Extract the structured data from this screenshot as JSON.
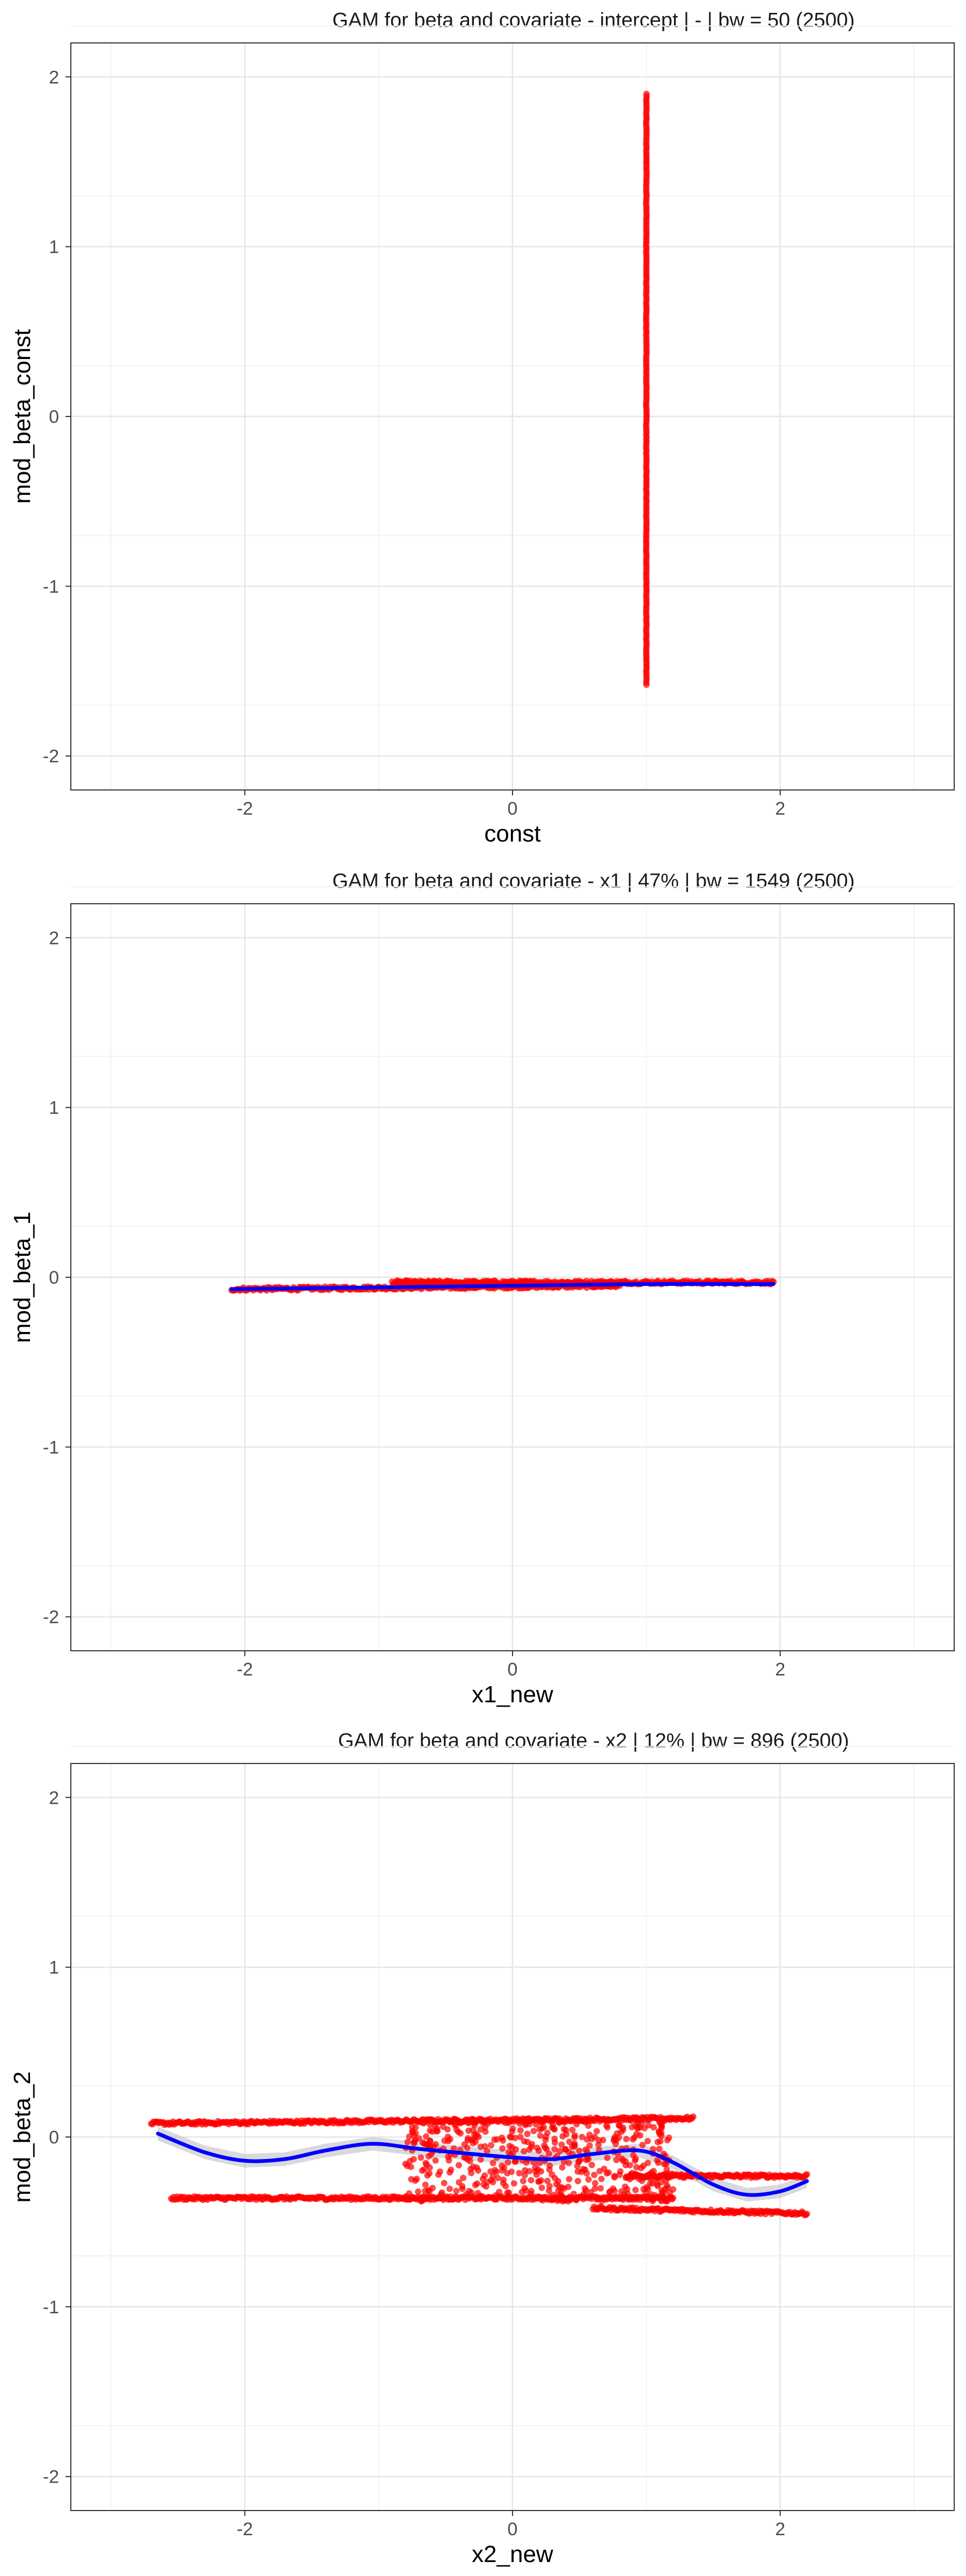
{
  "colors": {
    "points": "#ff0000",
    "smooth": "#0000ff",
    "ribbon": "#bfbfc6",
    "grid_major": "#e6e6e6",
    "grid_minor": "#f2f2f2",
    "panel_border": "#333333"
  },
  "chart_data": [
    {
      "type": "scatter",
      "title": "GAM for beta and covariate - intercept | - | bw = 50 (2500)",
      "xlabel": "const",
      "ylabel": "mod_beta_const",
      "xlim": [
        -3.3,
        3.3
      ],
      "ylim": [
        -2.2,
        2.2
      ],
      "xticks": [
        -2,
        0,
        2
      ],
      "yticks": [
        -2,
        -1,
        0,
        1,
        2
      ],
      "grid": true,
      "points": {
        "x": 1,
        "y_range": [
          -1.58,
          1.9
        ]
      },
      "smooth": []
    },
    {
      "type": "scatter",
      "title": "GAM for beta and covariate - x1 | 47% | bw = 1549 (2500)",
      "xlabel": "x1_new",
      "ylabel": "mod_beta_1",
      "xlim": [
        -3.3,
        3.3
      ],
      "ylim": [
        -2.2,
        2.2
      ],
      "xticks": [
        -2,
        0,
        2
      ],
      "yticks": [
        -2,
        -1,
        0,
        1,
        2
      ],
      "grid": true,
      "bands": [
        {
          "x_range": [
            -2.1,
            0.8
          ],
          "y_start": -0.07,
          "y_end": -0.05,
          "spread": 0.02
        },
        {
          "x_range": [
            -0.9,
            1.95
          ],
          "y_start": -0.03,
          "y_end": -0.03,
          "spread": 0.02
        }
      ],
      "smooth": [
        [
          -2.1,
          -0.07
        ],
        [
          -1.0,
          -0.06
        ],
        [
          0.0,
          -0.05
        ],
        [
          1.0,
          -0.04
        ],
        [
          1.95,
          -0.04
        ]
      ]
    },
    {
      "type": "scatter",
      "title": "GAM for beta and covariate - x2 | 12% | bw = 896 (2500)",
      "xlabel": "x2_new",
      "ylabel": "mod_beta_2",
      "xlim": [
        -3.3,
        3.3
      ],
      "ylim": [
        -2.2,
        2.2
      ],
      "xticks": [
        -2,
        0,
        2
      ],
      "yticks": [
        -2,
        -1,
        0,
        1,
        2
      ],
      "grid": true,
      "bands": [
        {
          "x_range": [
            -2.7,
            1.35
          ],
          "y_start": 0.08,
          "y_end": 0.11,
          "spread": 0.02
        },
        {
          "x_range": [
            -2.55,
            1.2
          ],
          "y_start": -0.36,
          "y_end": -0.36,
          "spread": 0.02
        },
        {
          "x_range": [
            0.85,
            2.2
          ],
          "y_start": -0.23,
          "y_end": -0.23,
          "spread": 0.02
        },
        {
          "x_range": [
            0.6,
            2.2
          ],
          "y_start": -0.42,
          "y_end": -0.45,
          "spread": 0.02
        }
      ],
      "cloud": {
        "x_range": [
          -0.8,
          1.2
        ],
        "y_range": [
          -0.38,
          0.1
        ]
      },
      "smooth": [
        [
          -2.65,
          0.02
        ],
        [
          -2.3,
          -0.09
        ],
        [
          -2.0,
          -0.14
        ],
        [
          -1.7,
          -0.13
        ],
        [
          -1.4,
          -0.08
        ],
        [
          -1.05,
          -0.04
        ],
        [
          -0.7,
          -0.07
        ],
        [
          -0.3,
          -0.1
        ],
        [
          0.0,
          -0.12
        ],
        [
          0.3,
          -0.13
        ],
        [
          0.6,
          -0.1
        ],
        [
          0.95,
          -0.08
        ],
        [
          1.2,
          -0.15
        ],
        [
          1.5,
          -0.28
        ],
        [
          1.75,
          -0.34
        ],
        [
          2.0,
          -0.32
        ],
        [
          2.2,
          -0.26
        ]
      ],
      "ribbon_halfwidth": 0.04
    }
  ]
}
